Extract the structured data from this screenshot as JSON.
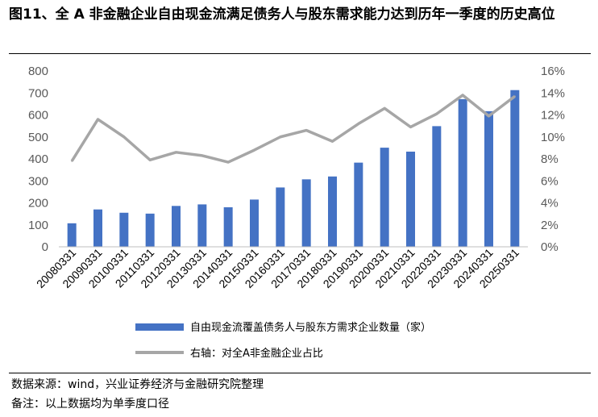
{
  "title": "图11、全 A 非金融企业自由现金流满足债务人与股东需求能力达到历年一季度的历史高位",
  "source_note": "数据来源：wind，兴业证券经济与金融研究院整理",
  "remark_note": "备注：以上数据均为单季度口径",
  "colors": {
    "bar": "#4472C4",
    "line": "#A6A6A6",
    "axis_text": "#595959",
    "grid": "#D9D9D9"
  },
  "chart_data": {
    "type": "bar+line",
    "categories": [
      "20080331",
      "20090331",
      "20100331",
      "20110331",
      "20120331",
      "20130331",
      "20140331",
      "20150331",
      "20160331",
      "20170331",
      "20180331",
      "20190331",
      "20200331",
      "20210331",
      "20220331",
      "20230331",
      "20240331",
      "20250331"
    ],
    "series": [
      {
        "name": "自由现金流覆盖债务人与股东方需求企业数量（家）",
        "type": "bar",
        "axis": "left",
        "values": [
          107,
          170,
          155,
          151,
          186,
          193,
          180,
          215,
          270,
          307,
          320,
          383,
          451,
          433,
          549,
          672,
          617,
          713
        ]
      },
      {
        "name": "右轴：对全A非金融企业占比",
        "type": "line",
        "axis": "right",
        "values": [
          7.8,
          11.6,
          10.0,
          7.9,
          8.6,
          8.3,
          7.7,
          8.8,
          10.0,
          10.6,
          9.6,
          11.2,
          12.6,
          10.9,
          12.1,
          13.8,
          11.9,
          13.7
        ]
      }
    ],
    "y_left": {
      "ylim": [
        0,
        800
      ],
      "ticks": [
        "0",
        "100",
        "200",
        "300",
        "400",
        "500",
        "600",
        "700",
        "800"
      ]
    },
    "y_right": {
      "ylim": [
        0,
        16
      ],
      "ticks": [
        "0%",
        "2%",
        "4%",
        "6%",
        "8%",
        "10%",
        "12%",
        "14%",
        "16%"
      ]
    },
    "grid": false,
    "legend_position": "bottom"
  }
}
